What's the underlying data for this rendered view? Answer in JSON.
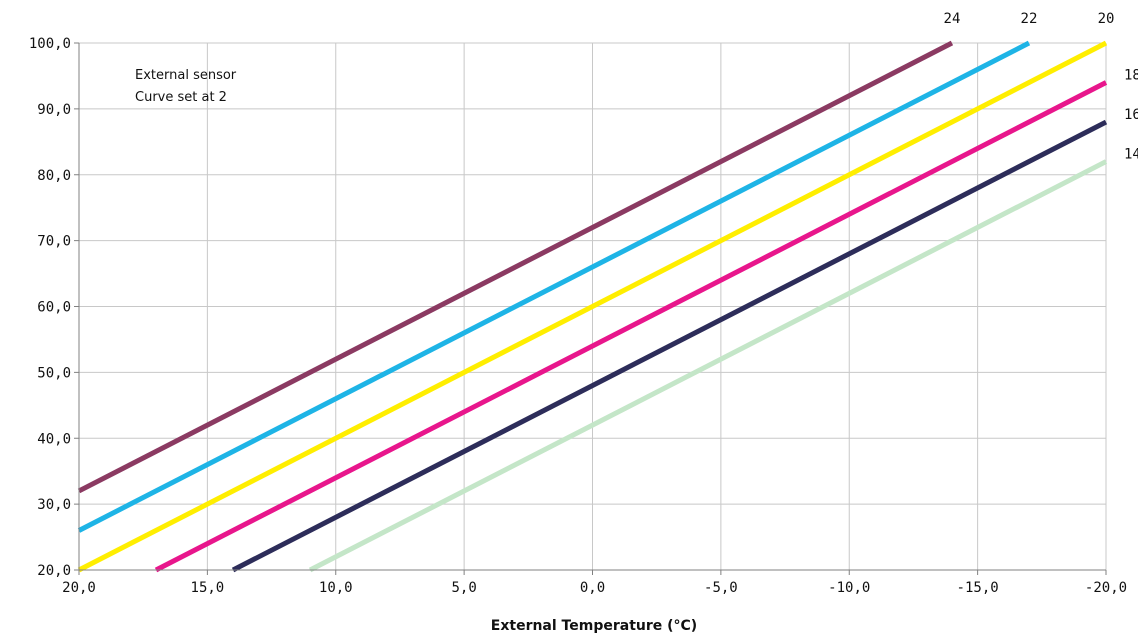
{
  "chart_data": {
    "type": "line",
    "title": "",
    "xlabel": "External Temperature (°C)",
    "ylabel": "",
    "xlim": [
      20,
      -20
    ],
    "ylim": [
      20,
      100
    ],
    "x_reversed": true,
    "grid": true,
    "x_ticks": [
      20,
      15,
      10,
      5,
      0,
      -5,
      -10,
      -15,
      -20
    ],
    "x_tick_labels": [
      "20,0",
      "15,0",
      "10,0",
      "5,0",
      "0,0",
      "-5,0",
      "-10,0",
      "-15,0",
      "-20,0"
    ],
    "y_ticks": [
      20,
      30,
      40,
      50,
      60,
      70,
      80,
      90,
      100
    ],
    "y_tick_labels": [
      "20,0",
      "30,0",
      "40,0",
      "50,0",
      "60,0",
      "70,0",
      "80,0",
      "90,0",
      "100,0"
    ],
    "annotations": [
      "External sensor",
      "Curve set at 2"
    ],
    "series": [
      {
        "name": "24",
        "color": "#8b3a62",
        "x": [
          20,
          -14
        ],
        "y": [
          32,
          100
        ]
      },
      {
        "name": "22",
        "color": "#1eb4e6",
        "x": [
          20,
          -17
        ],
        "y": [
          26,
          100
        ]
      },
      {
        "name": "20",
        "color": "#ffee00",
        "x": [
          20,
          -20
        ],
        "y": [
          20,
          100
        ]
      },
      {
        "name": "18",
        "color": "#e8168c",
        "x": [
          17,
          -20
        ],
        "y": [
          20,
          94
        ]
      },
      {
        "name": "16",
        "color": "#2d2d5a",
        "x": [
          14,
          -20
        ],
        "y": [
          20,
          88
        ]
      },
      {
        "name": "14",
        "color": "#c4e6c8",
        "x": [
          11,
          -20
        ],
        "y": [
          20,
          82
        ]
      }
    ]
  }
}
